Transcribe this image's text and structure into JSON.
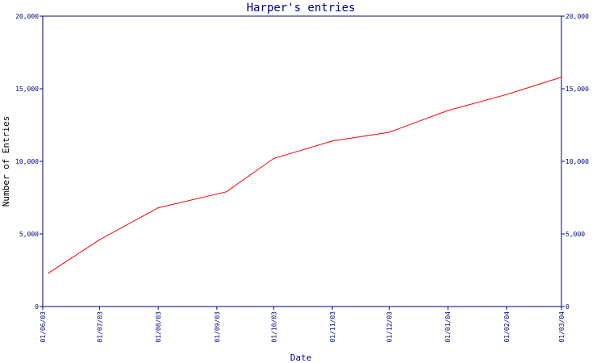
{
  "chart_data": {
    "type": "line",
    "title": "Harper's entries",
    "xlabel": "Date",
    "ylabel": "Number of Entries",
    "x_tick_labels": [
      "01/06/03",
      "01/07/03",
      "01/08/03",
      "01/09/03",
      "01/10/03",
      "01/11/03",
      "01/12/03",
      "01/01/04",
      "01/02/04",
      "01/03/04"
    ],
    "x_tick_dates": [
      "2003-06-01",
      "2003-07-01",
      "2003-08-01",
      "2003-09-01",
      "2003-10-01",
      "2003-11-01",
      "2003-12-01",
      "2004-01-01",
      "2004-02-01",
      "2004-03-01"
    ],
    "y_tick_labels": [
      "0",
      "5,000",
      "10,000",
      "15,000",
      "20,000"
    ],
    "y_tick_values": [
      0,
      5000,
      10000,
      15000,
      20000
    ],
    "ylim": [
      0,
      20000
    ],
    "xlim": [
      "2003-06-01",
      "2004-03-01"
    ],
    "grid": false,
    "series": [
      {
        "color": "#ff0000",
        "x": [
          "2003-06-04",
          "2003-07-01",
          "2003-08-01",
          "2003-09-06",
          "2003-10-01",
          "2003-11-01",
          "2003-12-01",
          "2004-01-01",
          "2004-02-01",
          "2004-03-01"
        ],
        "y": [
          2300,
          4600,
          6800,
          7900,
          10200,
          11400,
          12000,
          13500,
          14600,
          15800
        ]
      }
    ],
    "axis_color": "#000080"
  }
}
